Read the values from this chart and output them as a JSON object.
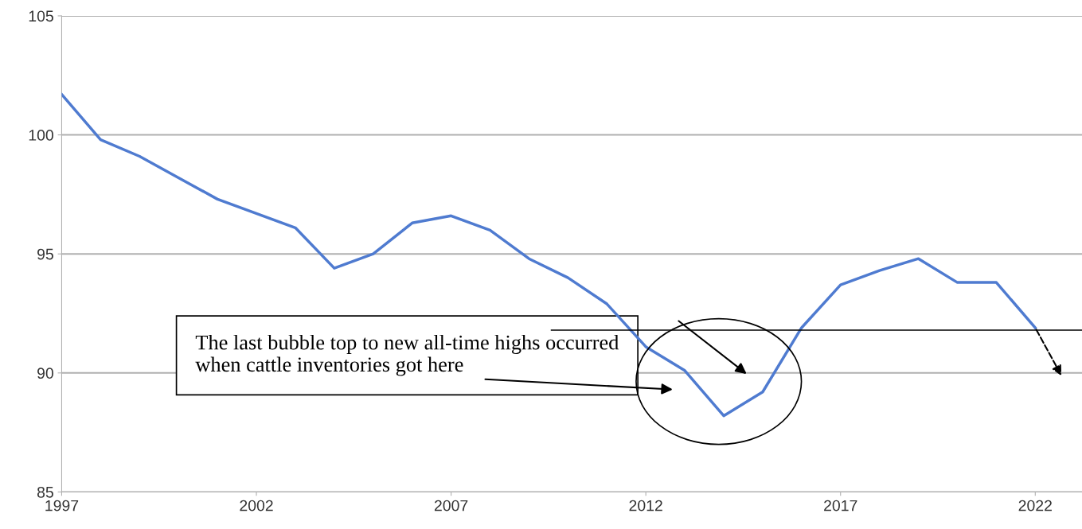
{
  "chart_data": {
    "type": "line",
    "x": [
      1997,
      1998,
      1999,
      2000,
      2001,
      2002,
      2003,
      2004,
      2005,
      2006,
      2007,
      2008,
      2009,
      2010,
      2011,
      2012,
      2013,
      2014,
      2015,
      2016,
      2017,
      2018,
      2019,
      2020,
      2021,
      2022
    ],
    "series": [
      {
        "color": "#4f7bd0",
        "values": [
          101.7,
          99.8,
          99.1,
          98.2,
          97.3,
          96.7,
          96.1,
          94.4,
          95.0,
          96.3,
          96.6,
          96.0,
          94.8,
          94.0,
          92.9,
          91.1,
          90.1,
          88.2,
          89.2,
          91.9,
          93.7,
          94.3,
          94.8,
          93.8,
          93.8,
          91.9
        ]
      }
    ],
    "xlim": [
      1997,
      2023.2
    ],
    "xticks": [
      1997,
      2002,
      2007,
      2012,
      2017,
      2022
    ],
    "ylim": [
      85,
      105
    ],
    "yticks": [
      85,
      90,
      95,
      100,
      105
    ],
    "grid": "y",
    "marker": "none",
    "line_style": "solid",
    "ref_lines": [
      {
        "axis": "y",
        "value": 91.8,
        "label": null,
        "color": "#000000"
      }
    ],
    "annotations": [
      "The last bubble top to new all-time highs occurred when cattle inventories got here"
    ]
  }
}
